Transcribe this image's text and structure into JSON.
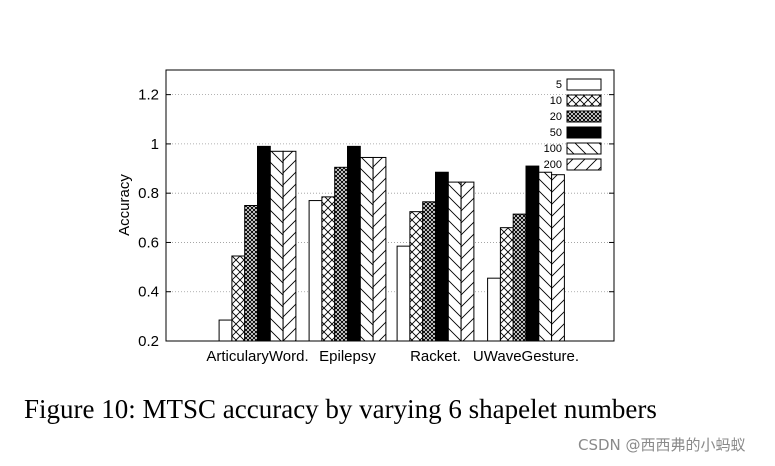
{
  "caption": "Figure 10: MTSC accuracy by varying 6 shapelet numbers",
  "watermark": "CSDN @西西弗的小蚂蚁",
  "chart_data": {
    "type": "bar",
    "title": "",
    "xlabel": "",
    "ylabel": "Accuracy",
    "ylim": [
      0.2,
      1.3
    ],
    "yticks": [
      "0.2",
      "0.4",
      "0.6",
      "0.8",
      "1",
      "1.2"
    ],
    "grid": "horizontal dotted",
    "legend_position": "top-right",
    "categories": [
      "ArticularyWord.",
      "Epilepsy",
      "Racket.",
      "UWaveGesture."
    ],
    "series": [
      {
        "name": "5",
        "pattern": "white",
        "values": [
          0.285,
          0.77,
          0.585,
          0.455
        ]
      },
      {
        "name": "10",
        "pattern": "crosshatch",
        "values": [
          0.545,
          0.785,
          0.725,
          0.66
        ]
      },
      {
        "name": "20",
        "pattern": "dense-crosshatch",
        "values": [
          0.75,
          0.905,
          0.765,
          0.715
        ]
      },
      {
        "name": "50",
        "pattern": "solid-black",
        "values": [
          0.99,
          0.99,
          0.885,
          0.91
        ]
      },
      {
        "name": "100",
        "pattern": "backslash",
        "values": [
          0.97,
          0.945,
          0.845,
          0.885
        ]
      },
      {
        "name": "200",
        "pattern": "slash",
        "values": [
          0.97,
          0.945,
          0.845,
          0.875
        ]
      }
    ]
  }
}
